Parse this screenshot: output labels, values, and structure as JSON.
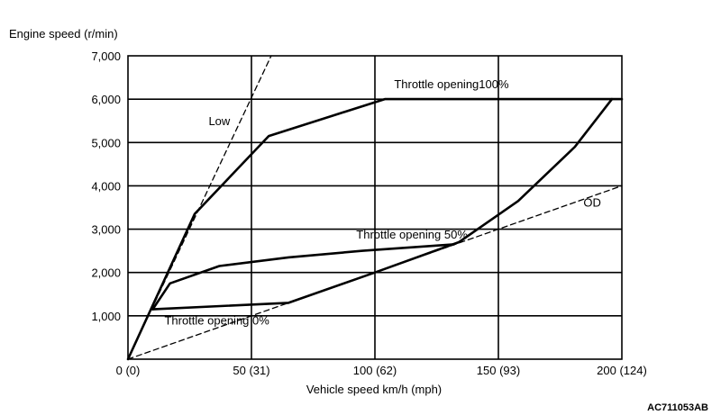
{
  "chart_data": {
    "type": "line",
    "ylabel": "Engine speed (r/min)",
    "xlabel": "Vehicle speed  km/h (mph)",
    "xlim": [
      0,
      200
    ],
    "ylim": [
      0,
      7000
    ],
    "grid": true,
    "x_ticks": [
      {
        "value": 0,
        "label": "0 (0)"
      },
      {
        "value": 50,
        "label": "50 (31)"
      },
      {
        "value": 100,
        "label": "100 (62)"
      },
      {
        "value": 150,
        "label": "150 (93)"
      },
      {
        "value": 200,
        "label": "200 (124)"
      }
    ],
    "y_ticks": [
      {
        "value": 1000,
        "label": "1,000"
      },
      {
        "value": 2000,
        "label": "2,000"
      },
      {
        "value": 3000,
        "label": "3,000"
      },
      {
        "value": 4000,
        "label": "4,000"
      },
      {
        "value": 5000,
        "label": "5,000"
      },
      {
        "value": 6000,
        "label": "6,000"
      },
      {
        "value": 7000,
        "label": "7,000"
      }
    ],
    "series": [
      {
        "name": "Low",
        "style": "dashed",
        "points": [
          [
            0,
            0
          ],
          [
            58,
            7000
          ]
        ]
      },
      {
        "name": "OD",
        "style": "dashed",
        "points": [
          [
            0,
            0
          ],
          [
            200,
            4000
          ]
        ]
      },
      {
        "name": "Throttle opening100%",
        "style": "solid",
        "points": [
          [
            0,
            0
          ],
          [
            27,
            3350
          ],
          [
            57,
            5150
          ],
          [
            104,
            6000
          ],
          [
            200,
            6000
          ]
        ]
      },
      {
        "name": "Throttle opening50%",
        "style": "solid",
        "points": [
          [
            10,
            1150
          ],
          [
            17,
            1750
          ],
          [
            37,
            2150
          ],
          [
            65,
            2350
          ],
          [
            95,
            2500
          ],
          [
            132,
            2650
          ]
        ]
      },
      {
        "name": "Throttle opening 0%",
        "style": "solid",
        "points": [
          [
            10,
            1150
          ],
          [
            65,
            1300
          ],
          [
            100,
            2000
          ],
          [
            134,
            2700
          ],
          [
            158,
            3650
          ],
          [
            181,
            4900
          ],
          [
            196,
            6000
          ]
        ]
      }
    ],
    "annotations": [
      {
        "text": "Low",
        "x": 37,
        "y": 5400
      },
      {
        "text": "OD",
        "x": 188,
        "y": 3520
      },
      {
        "text": "Throttle opening100%",
        "x": 131,
        "y": 6250
      },
      {
        "text": "Throttle opening 50%",
        "x": 115,
        "y": 2780
      },
      {
        "text": "Throttle opening 0%",
        "x": 36,
        "y": 800
      }
    ]
  },
  "figure_ref": "AC711053AB"
}
